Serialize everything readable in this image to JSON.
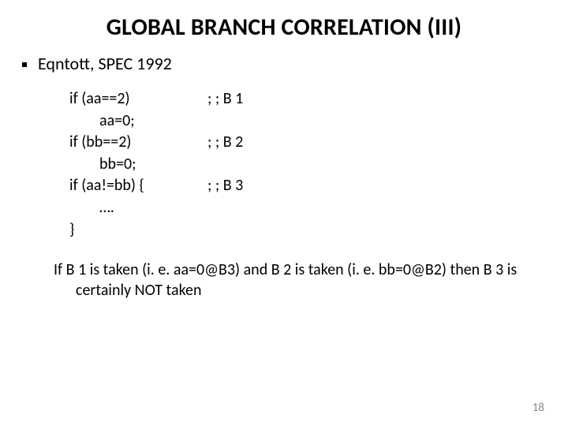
{
  "title": "GLOBAL BRANCH CORRELATION (III)",
  "bullet": "Eqntott, SPEC 1992",
  "code": {
    "rows": [
      {
        "left": "if (aa==2)",
        "right": "; ; B 1",
        "indent": false
      },
      {
        "left": "aa=0;",
        "right": "",
        "indent": true
      },
      {
        "left": "if (bb==2)",
        "right": "; ; B 2",
        "indent": false
      },
      {
        "left": "bb=0;",
        "right": "",
        "indent": true
      },
      {
        "left": "if (aa!=bb) {",
        "right": "; ; B 3",
        "indent": false
      },
      {
        "left": "….",
        "right": "",
        "indent": true
      },
      {
        "left": "}",
        "right": "",
        "indent": false
      }
    ]
  },
  "footer": "If B 1 is taken (i. e. aa=0@B3) and B 2 is taken (i. e. bb=0@B2) then B 3 is certainly NOT taken",
  "pageNumber": "18",
  "colors": {
    "background": "#ffffff",
    "text": "#000000",
    "pageNum": "#8a8a8a"
  },
  "fontsize": {
    "title": 30,
    "body": 22,
    "code": 20,
    "pageNum": 15
  }
}
